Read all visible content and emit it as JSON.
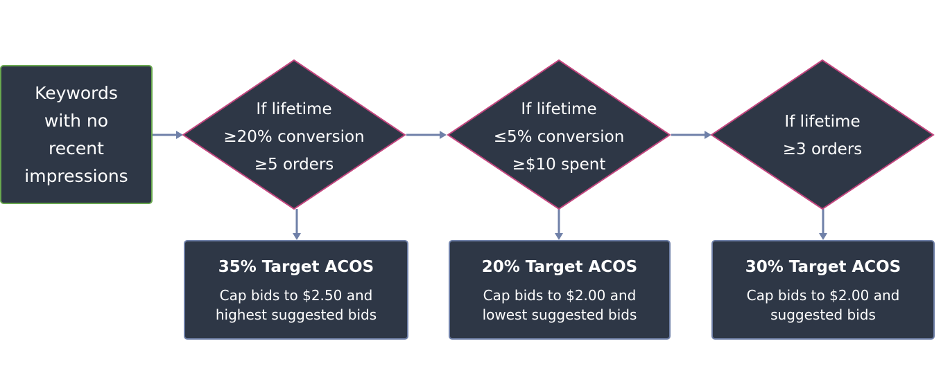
{
  "colors": {
    "node_fill": "#2e3746",
    "start_border": "#69a84f",
    "decision_border": "#c2457e",
    "outcome_border": "#6f80a8",
    "connector": "#6f80a8",
    "label_text": "#ffffff",
    "node_text": "#ffffff"
  },
  "top_labels": [
    "",
    "",
    ""
  ],
  "start": {
    "lines": [
      "Keywords",
      "with no",
      "recent",
      "impressions"
    ]
  },
  "decisions": [
    {
      "lines": [
        "If lifetime",
        "≥20% conversion",
        "≥5 orders"
      ]
    },
    {
      "lines": [
        "If lifetime",
        "≤5% conversion",
        "≥$10 spent"
      ]
    },
    {
      "lines": [
        "If lifetime",
        "≥3 orders"
      ]
    }
  ],
  "else_labels": [
    "",
    ""
  ],
  "outcomes": [
    {
      "title": "35% Target ACOS",
      "lines": [
        "Cap bids to $2.50 and",
        "highest suggested bids"
      ]
    },
    {
      "title": "20% Target ACOS",
      "lines": [
        "Cap bids to $2.00 and",
        "lowest suggested bids"
      ]
    },
    {
      "title": "30% Target ACOS",
      "lines": [
        "Cap bids to $2.00 and",
        "suggested bids"
      ]
    }
  ]
}
